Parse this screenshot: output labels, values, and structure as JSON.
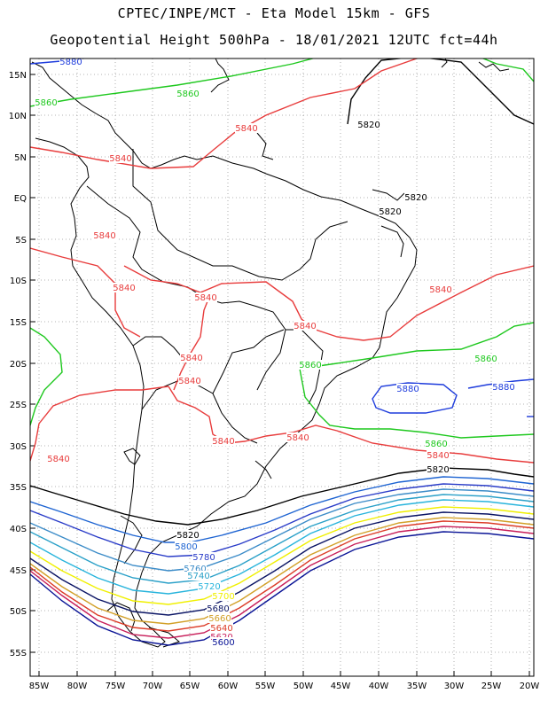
{
  "header": {
    "line1": "CPTEC/INPE/MCT -  Eta Model 15km - GFS",
    "line2": "Geopotential Height 500hPa - 18/01/2021 12UTC fct=44h"
  },
  "axes": {
    "lat_labels": [
      "15N",
      "10N",
      "5N",
      "EQ",
      "5S",
      "10S",
      "15S",
      "20S",
      "25S",
      "30S",
      "35S",
      "40S",
      "45S",
      "50S",
      "55S"
    ],
    "lon_labels": [
      "85W",
      "80W",
      "75W",
      "70W",
      "65W",
      "60W",
      "55W",
      "50W",
      "45W",
      "40W",
      "35W",
      "30W",
      "25W",
      "20W"
    ]
  },
  "colors": {
    "c5880": "#1e3cdc",
    "c5860": "#1ec81e",
    "c5840": "#e83c3c",
    "c5820": "#000000",
    "c5800": "#1e64d2",
    "c5780": "#2a3cc8",
    "c5760": "#3c8cc8",
    "c5740": "#2aa0c8",
    "c5720": "#28b4dc",
    "c5700": "#f0f000",
    "c5680": "#0a1464",
    "c5660": "#d2a028",
    "c5640": "#dc3c28",
    "c5620": "#c81e5a",
    "c5600": "#0a1496",
    "land": "#000000"
  },
  "contour_labels": [
    {
      "text": "5880",
      "color": "c5880"
    },
    {
      "text": "5860",
      "color": "c5860"
    },
    {
      "text": "5860",
      "color": "c5860"
    },
    {
      "text": "5820",
      "color": "c5820"
    },
    {
      "text": "5840",
      "color": "c5840"
    },
    {
      "text": "5840",
      "color": "c5840"
    },
    {
      "text": "5820",
      "color": "c5820"
    },
    {
      "text": "5820",
      "color": "c5820"
    },
    {
      "text": "5840",
      "color": "c5840"
    },
    {
      "text": "5840",
      "color": "c5840"
    },
    {
      "text": "5840",
      "color": "c5840"
    },
    {
      "text": "5840",
      "color": "c5840"
    },
    {
      "text": "5840",
      "color": "c5840"
    },
    {
      "text": "5840",
      "color": "c5840"
    },
    {
      "text": "5860",
      "color": "c5860"
    },
    {
      "text": "5860",
      "color": "c5860"
    },
    {
      "text": "5880",
      "color": "c5880"
    },
    {
      "text": "5880",
      "color": "c5880"
    },
    {
      "text": "5840",
      "color": "c5840"
    },
    {
      "text": "5840",
      "color": "c5840"
    },
    {
      "text": "5840",
      "color": "c5840"
    },
    {
      "text": "5860",
      "color": "c5860"
    },
    {
      "text": "5840",
      "color": "c5840"
    },
    {
      "text": "5840",
      "color": "c5840"
    },
    {
      "text": "5820",
      "color": "c5820"
    },
    {
      "text": "5820",
      "color": "c5820"
    },
    {
      "text": "5800",
      "color": "c5800"
    },
    {
      "text": "5780",
      "color": "c5780"
    },
    {
      "text": "5760",
      "color": "c5760"
    },
    {
      "text": "5740",
      "color": "c5740"
    },
    {
      "text": "5720",
      "color": "c5720"
    },
    {
      "text": "5700",
      "color": "c5700"
    },
    {
      "text": "5680",
      "color": "c5680"
    },
    {
      "text": "5660",
      "color": "c5660"
    },
    {
      "text": "5640",
      "color": "c5640"
    },
    {
      "text": "5620",
      "color": "c5620"
    },
    {
      "text": "5600",
      "color": "c5600"
    }
  ]
}
